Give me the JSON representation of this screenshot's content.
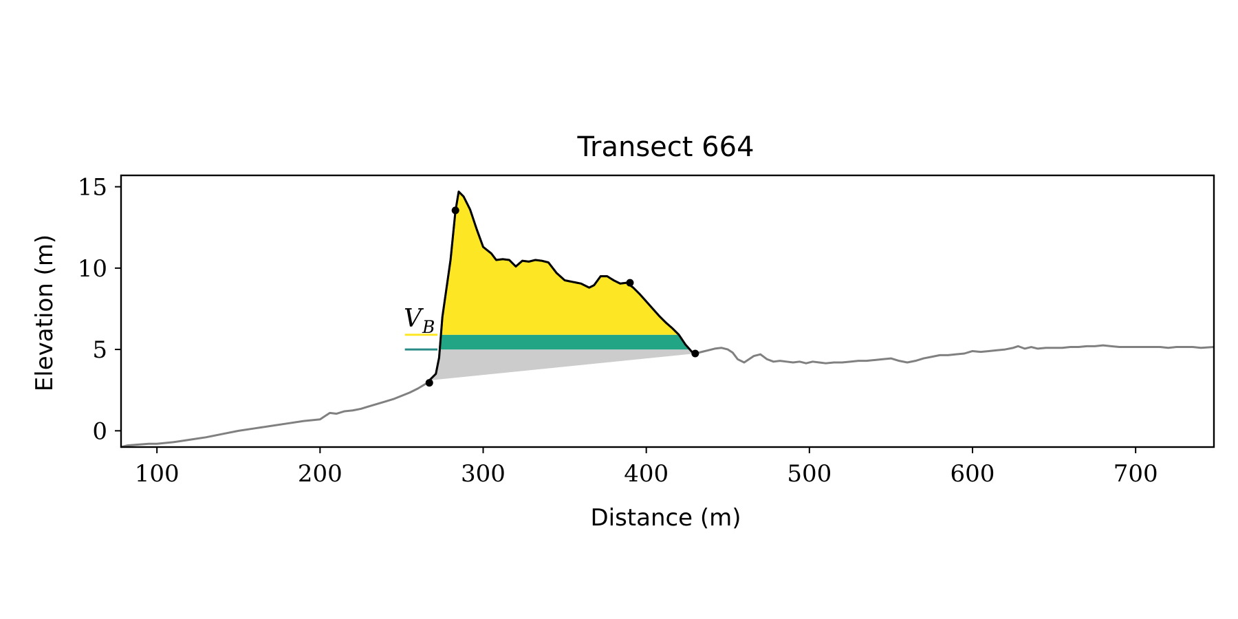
{
  "chart_data": {
    "type": "line",
    "title": "Transect 664",
    "xlabel": "Distance (m)",
    "ylabel": "Elevation (m)",
    "xlim": [
      78,
      748
    ],
    "ylim": [
      -1,
      15.7
    ],
    "xticks": [
      100,
      200,
      300,
      400,
      500,
      600,
      700
    ],
    "yticks": [
      0,
      5,
      10,
      15
    ],
    "xtick_labels": [
      "100",
      "200",
      "300",
      "400",
      "500",
      "600",
      "700"
    ],
    "ytick_labels": [
      "0",
      "5",
      "10",
      "15"
    ],
    "grid": false,
    "colors": {
      "profile": "#808080",
      "dune_outline": "#000000",
      "vb_fill": "#fde725",
      "band_fill": "#21a585",
      "band_line": "#2a8a86",
      "base_fill": "#cccccc",
      "points": "#000000"
    },
    "annotation": {
      "label": "V",
      "subscript": "B"
    },
    "reference_levels": {
      "upper": 5.9,
      "lower": 5.0
    },
    "series": [
      {
        "role": "profile",
        "x": [
          78,
          82,
          88,
          95,
          100,
          110,
          120,
          130,
          140,
          150,
          160,
          170,
          180,
          190,
          200,
          203,
          206,
          210,
          215,
          220,
          225,
          230,
          235,
          240,
          245,
          250,
          255,
          260,
          265,
          268,
          271,
          273,
          275,
          280,
          283,
          285,
          288,
          292,
          296,
          300,
          305,
          308,
          312,
          316,
          320,
          324,
          328,
          332,
          336,
          340,
          345,
          350,
          355,
          360,
          365,
          368,
          372,
          376,
          380,
          384,
          388,
          392,
          396,
          400,
          404,
          408,
          412,
          416,
          420,
          424,
          428,
          430,
          434,
          438,
          442,
          446,
          450,
          453,
          456,
          460,
          463,
          466,
          470,
          474,
          478,
          482,
          486,
          490,
          494,
          498,
          502,
          506,
          510,
          515,
          520,
          525,
          530,
          535,
          540,
          545,
          550,
          555,
          560,
          565,
          570,
          575,
          580,
          585,
          590,
          595,
          600,
          605,
          610,
          615,
          620,
          625,
          628,
          632,
          636,
          640,
          645,
          650,
          655,
          660,
          665,
          670,
          675,
          680,
          685,
          690,
          695,
          700,
          705,
          710,
          715,
          720,
          725,
          730,
          735,
          740,
          748
        ],
        "y": [
          -1,
          -0.9,
          -0.85,
          -0.8,
          -0.8,
          -0.7,
          -0.55,
          -0.4,
          -0.2,
          0,
          0.15,
          0.3,
          0.45,
          0.6,
          0.7,
          0.9,
          1.1,
          1.05,
          1.2,
          1.25,
          1.35,
          1.5,
          1.65,
          1.8,
          1.95,
          2.15,
          2.35,
          2.6,
          2.9,
          3.2,
          3.5,
          4.5,
          7.0,
          10.5,
          13.5,
          14.7,
          14.4,
          13.6,
          12.4,
          11.3,
          10.9,
          10.5,
          10.55,
          10.5,
          10.1,
          10.45,
          10.4,
          10.5,
          10.45,
          10.35,
          9.7,
          9.25,
          9.15,
          9.05,
          8.8,
          8.95,
          9.5,
          9.5,
          9.25,
          9.05,
          9.1,
          8.8,
          8.4,
          7.95,
          7.5,
          7.05,
          6.65,
          6.3,
          5.9,
          5.3,
          4.85,
          4.75,
          4.85,
          4.95,
          5.05,
          5.1,
          5.0,
          4.8,
          4.4,
          4.2,
          4.4,
          4.6,
          4.7,
          4.4,
          4.25,
          4.3,
          4.25,
          4.2,
          4.25,
          4.15,
          4.25,
          4.2,
          4.15,
          4.2,
          4.2,
          4.25,
          4.3,
          4.3,
          4.35,
          4.4,
          4.45,
          4.3,
          4.2,
          4.3,
          4.45,
          4.55,
          4.65,
          4.65,
          4.7,
          4.75,
          4.9,
          4.85,
          4.9,
          4.95,
          5.0,
          5.1,
          5.2,
          5.05,
          5.15,
          5.05,
          5.1,
          5.1,
          5.1,
          5.15,
          5.15,
          5.2,
          5.2,
          5.25,
          5.2,
          5.15,
          5.15,
          5.15,
          5.15,
          5.15,
          5.15,
          5.1,
          5.15,
          5.15,
          5.15,
          5.1,
          5.15
        ]
      }
    ],
    "dune": {
      "x_start": 267,
      "x_crest": 283,
      "x_heel": 390,
      "x_toe": 430
    },
    "points": [
      {
        "x": 267,
        "y": 2.95
      },
      {
        "x": 283,
        "y": 13.55
      },
      {
        "x": 390,
        "y": 9.1
      },
      {
        "x": 430,
        "y": 4.75
      }
    ]
  }
}
